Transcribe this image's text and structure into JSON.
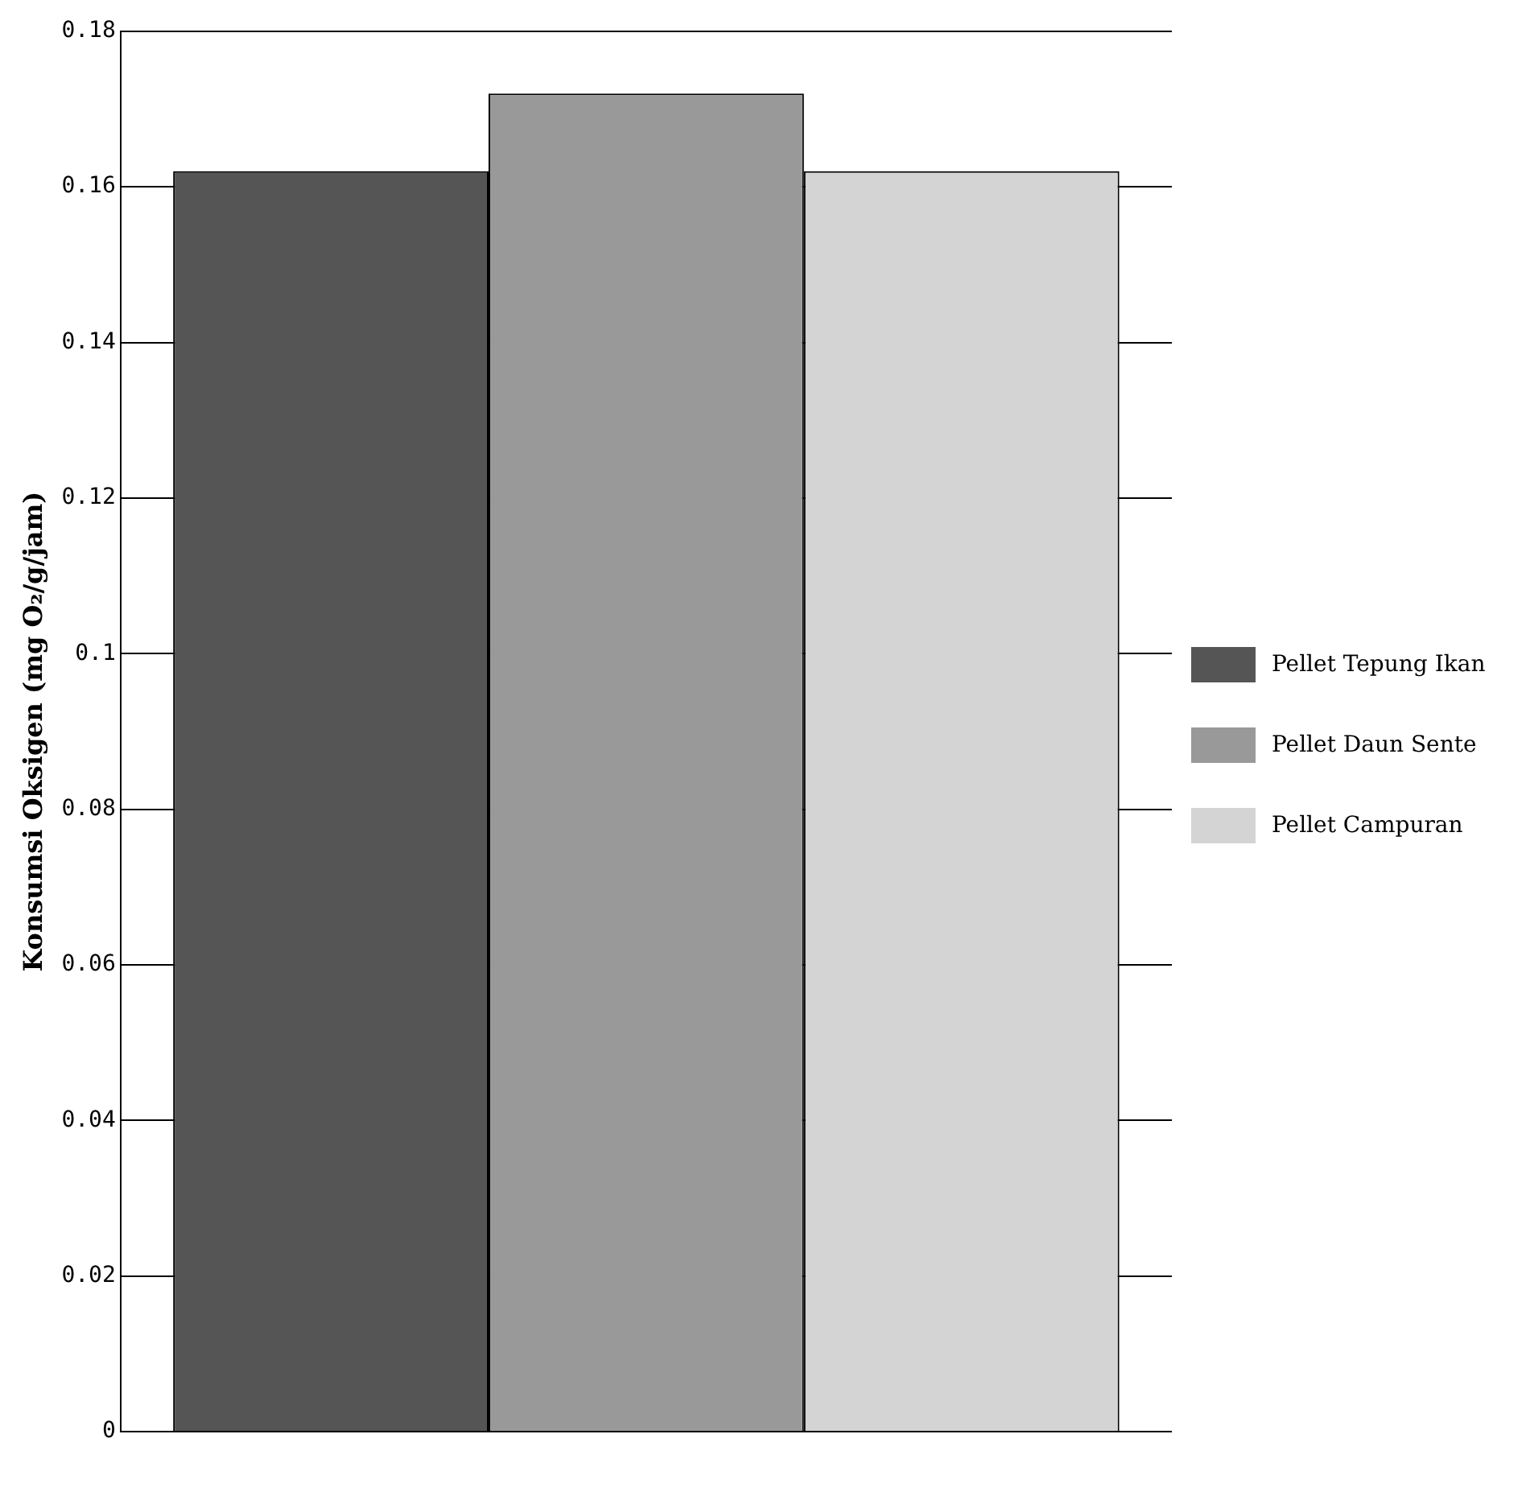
{
  "chart_data": {
    "type": "bar",
    "ylabel": "Konsumsi Oksigen (mg O₂/g/jam)",
    "categories": [
      null
    ],
    "series": [
      {
        "name": "Pellet Tepung Ikan",
        "color": "#555555",
        "values": [
          0.162
        ]
      },
      {
        "name": "Pellet Daun Sente",
        "color": "#999999",
        "values": [
          0.172
        ]
      },
      {
        "name": "Pellet Campuran",
        "color": "#d4d4d4",
        "values": [
          0.162
        ]
      }
    ],
    "ylim": [
      0,
      0.18
    ],
    "yticks": [
      0,
      {
        "value": 0.02,
        "label": "0.02"
      },
      {
        "value": 0.04,
        "label": "0.04"
      },
      {
        "value": 0.06,
        "label": "0.06"
      },
      {
        "value": 0.08,
        "label": "0.08"
      },
      0.1,
      {
        "value": 0.12,
        "label": "0.12"
      },
      {
        "value": 0.14,
        "label": "0.14"
      },
      {
        "value": 0.16,
        "label": "0.16"
      },
      {
        "value": 0.18,
        "label": "0.18"
      }
    ],
    "grid": "y",
    "legend": "right"
  }
}
